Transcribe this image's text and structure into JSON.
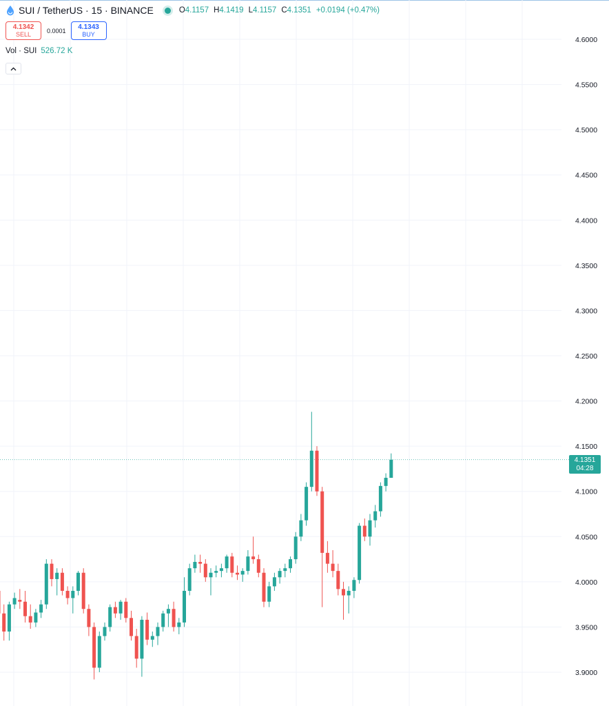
{
  "header": {
    "symbol": "SUI / TetherUS · 15 · BINANCE",
    "ohlc": {
      "o_label": "O",
      "o": "4.1157",
      "h_label": "H",
      "h": "4.1419",
      "l_label": "L",
      "l": "4.1157",
      "c_label": "C",
      "c": "4.1351"
    },
    "change": "+0.0194 (+0.47%)"
  },
  "trade": {
    "sell_price": "4.1342",
    "sell_label": "SELL",
    "spread": "0.0001",
    "buy_price": "4.1343",
    "buy_label": "BUY"
  },
  "volume": {
    "label": "Vol · SUI",
    "value": "526.72 K"
  },
  "price_tag": {
    "price": "4.1351",
    "countdown": "04:28"
  },
  "colors": {
    "up": "#26a69a",
    "down": "#ef5350",
    "grid": "#f0f3fa",
    "axis_text": "#131722"
  },
  "chart_data": {
    "type": "candlestick",
    "ylim": [
      3.885,
      4.62
    ],
    "yticks": [
      "4.6000",
      "4.5500",
      "4.5000",
      "4.4500",
      "4.4000",
      "4.3500",
      "4.3000",
      "4.2500",
      "4.2000",
      "4.1500",
      "4.1000",
      "4.0500",
      "4.0000",
      "3.9500",
      "3.9000"
    ],
    "last_price": 4.1351,
    "candles": [
      [
        3.99,
        3.995,
        3.955,
        3.965
      ],
      [
        3.965,
        3.975,
        3.935,
        3.945
      ],
      [
        3.945,
        3.978,
        3.935,
        3.975
      ],
      [
        3.975,
        3.988,
        3.97,
        3.982
      ],
      [
        3.98,
        3.992,
        3.97,
        3.978
      ],
      [
        3.978,
        3.99,
        3.955,
        3.962
      ],
      [
        3.962,
        3.975,
        3.948,
        3.955
      ],
      [
        3.955,
        3.97,
        3.95,
        3.966
      ],
      [
        3.966,
        3.98,
        3.96,
        3.975
      ],
      [
        3.975,
        4.025,
        3.97,
        4.02
      ],
      [
        4.02,
        4.025,
        3.995,
        4.003
      ],
      [
        4.003,
        4.015,
        3.985,
        4.01
      ],
      [
        4.01,
        4.015,
        3.985,
        3.99
      ],
      [
        3.99,
        3.995,
        3.975,
        3.982
      ],
      [
        3.982,
        3.995,
        3.965,
        3.99
      ],
      [
        3.99,
        4.012,
        3.985,
        4.01
      ],
      [
        4.01,
        4.015,
        3.965,
        3.97
      ],
      [
        3.97,
        3.975,
        3.94,
        3.95
      ],
      [
        3.95,
        3.955,
        3.892,
        3.905
      ],
      [
        3.905,
        3.945,
        3.9,
        3.94
      ],
      [
        3.94,
        3.955,
        3.935,
        3.95
      ],
      [
        3.95,
        3.975,
        3.945,
        3.972
      ],
      [
        3.972,
        3.978,
        3.96,
        3.965
      ],
      [
        3.965,
        3.98,
        3.958,
        3.978
      ],
      [
        3.978,
        3.982,
        3.955,
        3.96
      ],
      [
        3.96,
        3.968,
        3.935,
        3.94
      ],
      [
        3.94,
        3.948,
        3.905,
        3.915
      ],
      [
        3.915,
        3.962,
        3.895,
        3.958
      ],
      [
        3.958,
        3.966,
        3.93,
        3.936
      ],
      [
        3.936,
        3.945,
        3.928,
        3.94
      ],
      [
        3.94,
        3.955,
        3.93,
        3.95
      ],
      [
        3.95,
        3.968,
        3.945,
        3.965
      ],
      [
        3.965,
        3.975,
        3.95,
        3.97
      ],
      [
        3.97,
        3.978,
        3.945,
        3.95
      ],
      [
        3.95,
        3.96,
        3.942,
        3.955
      ],
      [
        3.955,
        4.005,
        3.95,
        3.99
      ],
      [
        3.99,
        4.02,
        3.985,
        4.015
      ],
      [
        4.015,
        4.03,
        4.01,
        4.022
      ],
      [
        4.022,
        4.03,
        4.01,
        4.02
      ],
      [
        4.02,
        4.025,
        4.0,
        4.005
      ],
      [
        4.005,
        4.015,
        3.985,
        4.01
      ],
      [
        4.01,
        4.018,
        4.005,
        4.012
      ],
      [
        4.012,
        4.02,
        4.005,
        4.015
      ],
      [
        4.015,
        4.03,
        4.01,
        4.028
      ],
      [
        4.028,
        4.032,
        4.005,
        4.01
      ],
      [
        4.01,
        4.018,
        4.002,
        4.008
      ],
      [
        4.008,
        4.015,
        4.0,
        4.012
      ],
      [
        4.012,
        4.035,
        4.008,
        4.028
      ],
      [
        4.028,
        4.05,
        4.02,
        4.025
      ],
      [
        4.025,
        4.03,
        4.005,
        4.01
      ],
      [
        4.01,
        4.015,
        3.972,
        3.978
      ],
      [
        3.978,
        4.0,
        3.972,
        3.995
      ],
      [
        3.995,
        4.01,
        3.99,
        4.005
      ],
      [
        4.005,
        4.015,
        3.998,
        4.012
      ],
      [
        4.012,
        4.02,
        4.005,
        4.015
      ],
      [
        4.015,
        4.028,
        4.01,
        4.025
      ],
      [
        4.025,
        4.055,
        4.02,
        4.05
      ],
      [
        4.05,
        4.075,
        4.045,
        4.068
      ],
      [
        4.068,
        4.11,
        4.062,
        4.105
      ],
      [
        4.105,
        4.188,
        4.1,
        4.145
      ],
      [
        4.145,
        4.15,
        4.095,
        4.1
      ],
      [
        4.1,
        4.105,
        3.972,
        4.032
      ],
      [
        4.032,
        4.045,
        4.01,
        4.02
      ],
      [
        4.02,
        4.035,
        4.005,
        4.012
      ],
      [
        4.012,
        4.02,
        3.985,
        3.992
      ],
      [
        3.992,
        4.0,
        3.958,
        3.985
      ],
      [
        3.985,
        3.995,
        3.965,
        3.99
      ],
      [
        3.99,
        4.005,
        3.982,
        4.002
      ],
      [
        4.002,
        4.065,
        3.998,
        4.062
      ],
      [
        4.062,
        4.07,
        4.045,
        4.05
      ],
      [
        4.05,
        4.075,
        4.04,
        4.068
      ],
      [
        4.068,
        4.085,
        4.06,
        4.078
      ],
      [
        4.078,
        4.11,
        4.072,
        4.106
      ],
      [
        4.106,
        4.12,
        4.1,
        4.115
      ],
      [
        4.115,
        4.142,
        4.115,
        4.135
      ]
    ]
  }
}
